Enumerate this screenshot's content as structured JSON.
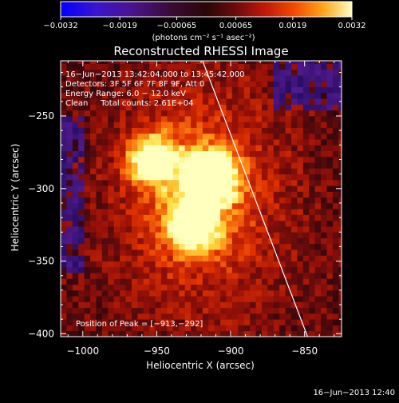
{
  "chart_data": {
    "type": "heatmap",
    "title": "Reconstructed RHESSI Image",
    "xlabel": "Heliocentric X (arcsec)",
    "ylabel": "Heliocentric Y (arcsec)",
    "xlim": [
      -1015,
      -825
    ],
    "ylim": [
      -402,
      -212
    ],
    "x_ticks": [
      {
        "value": -1000,
        "label": "−1000"
      },
      {
        "value": -950,
        "label": "−950"
      },
      {
        "value": -900,
        "label": "−900"
      },
      {
        "value": -850,
        "label": "−850"
      }
    ],
    "y_ticks": [
      {
        "value": -250,
        "label": "−250"
      },
      {
        "value": -300,
        "label": "−300"
      },
      {
        "value": -350,
        "label": "−350"
      },
      {
        "value": -400,
        "label": "−400"
      }
    ],
    "colorbar": {
      "min": -0.0032,
      "max": 0.0032,
      "tick_values": [
        -0.0032,
        -0.0019,
        -0.00065,
        0.00065,
        0.0019,
        0.0032
      ],
      "tick_labels": [
        "−0.0032",
        "−0.0019",
        "−0.00065",
        "0.00065",
        "0.0019",
        "0.0032"
      ],
      "units_label": "(photons cm⁻² s⁻¹ asec⁻²)"
    },
    "annotations": [
      "16−Jun−2013 13:42:04.000 to 13:45:42.000",
      "Detectors: 3F 5F 6F 7F 8F 9F, Att 0",
      "Energy Range: 6.0 − 12.0 keV",
      "Clean     Total counts: 2.61E+04"
    ],
    "peak_label": "Position of Peak = [−913,−292]",
    "peak": [
      -913,
      -292
    ],
    "sources": [
      {
        "x": -913,
        "y": -292,
        "value": 0.0032
      },
      {
        "x": -926,
        "y": -324,
        "value": 0.0029
      },
      {
        "x": -953,
        "y": -280,
        "value": 0.0026
      }
    ],
    "limb_line": [
      [
        -919,
        -212
      ],
      [
        -848,
        -402
      ]
    ],
    "colors": {
      "background": "#000000",
      "text": "#ffffff",
      "colormap": [
        "#0000ff",
        "#5a10b0",
        "#2a0a3a",
        "#5a0c0c",
        "#b01000",
        "#f04000",
        "#ff9a10",
        "#ffe040",
        "#ffffff"
      ]
    }
  },
  "footer_timestamp": "16−Jun−2013 12:40"
}
